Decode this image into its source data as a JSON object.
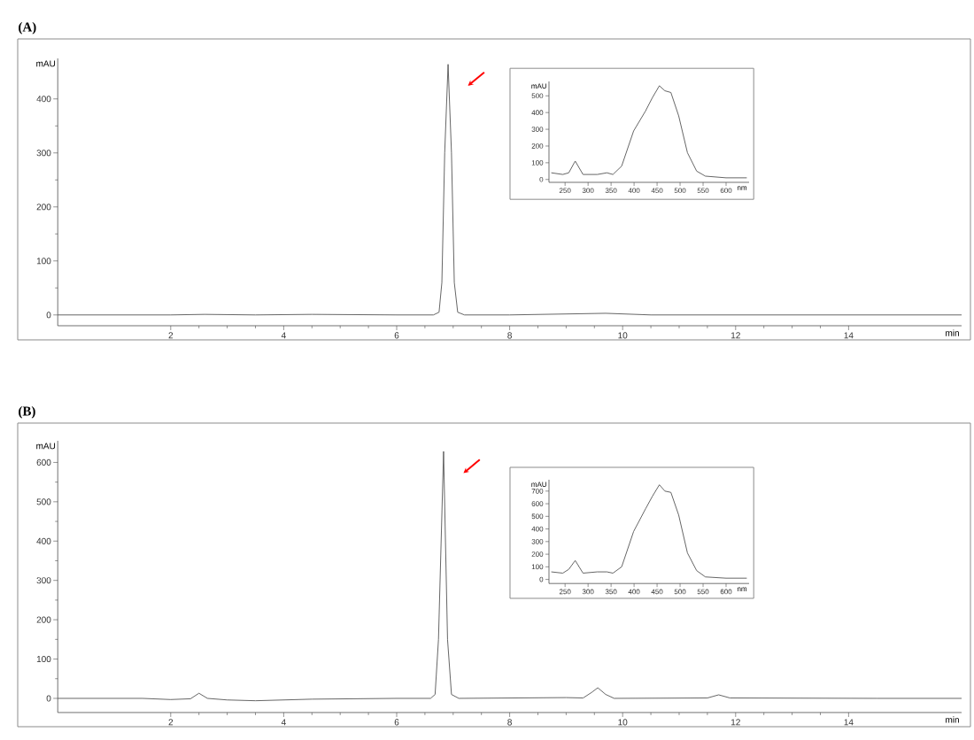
{
  "chart_data": [
    {
      "type": "line",
      "title": "(A)",
      "xlabel": "min",
      "ylabel": "mAU",
      "color": "#555555",
      "xlim": [
        0,
        16
      ],
      "ylim": [
        -20,
        475
      ],
      "xticks": [
        2,
        4,
        6,
        8,
        10,
        12,
        14
      ],
      "yticks": [
        0,
        100,
        200,
        300,
        400
      ],
      "x": [
        0,
        1,
        2,
        2.6,
        3.5,
        4.5,
        6,
        6.65,
        6.75,
        6.8,
        6.85,
        6.91,
        6.97,
        7.02,
        7.08,
        7.2,
        8,
        9.7,
        10.5,
        12,
        14,
        16
      ],
      "values": [
        0,
        0,
        0,
        1,
        0,
        1,
        0,
        0,
        5,
        60,
        300,
        464,
        300,
        60,
        5,
        0,
        0,
        3,
        0,
        0,
        0,
        0
      ]
    },
    {
      "type": "line",
      "xlabel": "nm",
      "ylabel": "mAU",
      "color": "#555555",
      "xlim": [
        215,
        650
      ],
      "ylim": [
        -17,
        586
      ],
      "xticks": [
        250,
        300,
        350,
        400,
        450,
        500,
        550,
        600
      ],
      "yticks": [
        0,
        100,
        200,
        300,
        400,
        500
      ],
      "x": [
        220,
        245,
        258,
        272,
        289,
        320,
        341,
        354,
        373,
        399,
        425,
        440,
        455,
        467,
        480,
        497,
        516,
        536,
        555,
        600,
        645
      ],
      "values": [
        40,
        30,
        40,
        110,
        30,
        30,
        40,
        30,
        80,
        290,
        410,
        490,
        560,
        530,
        520,
        380,
        160,
        50,
        20,
        10,
        10
      ]
    },
    {
      "type": "line",
      "title": "(B)",
      "xlabel": "min",
      "ylabel": "mAU",
      "color": "#555555",
      "xlim": [
        0,
        16
      ],
      "ylim": [
        -36,
        655
      ],
      "xticks": [
        2,
        4,
        6,
        8,
        10,
        12,
        14
      ],
      "yticks": [
        0,
        100,
        200,
        300,
        400,
        500,
        600
      ],
      "x": [
        0,
        1.5,
        2.0,
        2.35,
        2.5,
        2.65,
        3.0,
        3.5,
        4.5,
        6.0,
        6.6,
        6.68,
        6.74,
        6.83,
        6.9,
        6.97,
        7.1,
        9.0,
        9.3,
        9.45,
        9.56,
        9.7,
        9.85,
        11.5,
        11.7,
        11.9,
        14.5,
        16
      ],
      "values": [
        0,
        0,
        -3,
        -1,
        13,
        0,
        -4,
        -6,
        -2,
        0,
        0,
        10,
        150,
        628,
        150,
        10,
        0,
        2,
        1,
        15,
        27,
        10,
        0,
        1,
        9,
        1,
        0,
        0
      ]
    },
    {
      "type": "line",
      "xlabel": "nm",
      "ylabel": "mAU",
      "color": "#555555",
      "xlim": [
        215,
        650
      ],
      "ylim": [
        -32,
        790
      ],
      "xticks": [
        250,
        300,
        350,
        400,
        450,
        500,
        550,
        600
      ],
      "yticks": [
        0,
        100,
        200,
        300,
        400,
        500,
        600,
        700
      ],
      "x": [
        220,
        245,
        258,
        272,
        289,
        320,
        341,
        354,
        373,
        399,
        425,
        440,
        455,
        467,
        480,
        497,
        516,
        536,
        555,
        600,
        645
      ],
      "values": [
        60,
        50,
        80,
        150,
        50,
        60,
        60,
        50,
        100,
        380,
        560,
        660,
        750,
        700,
        690,
        510,
        210,
        70,
        20,
        10,
        10
      ]
    }
  ]
}
